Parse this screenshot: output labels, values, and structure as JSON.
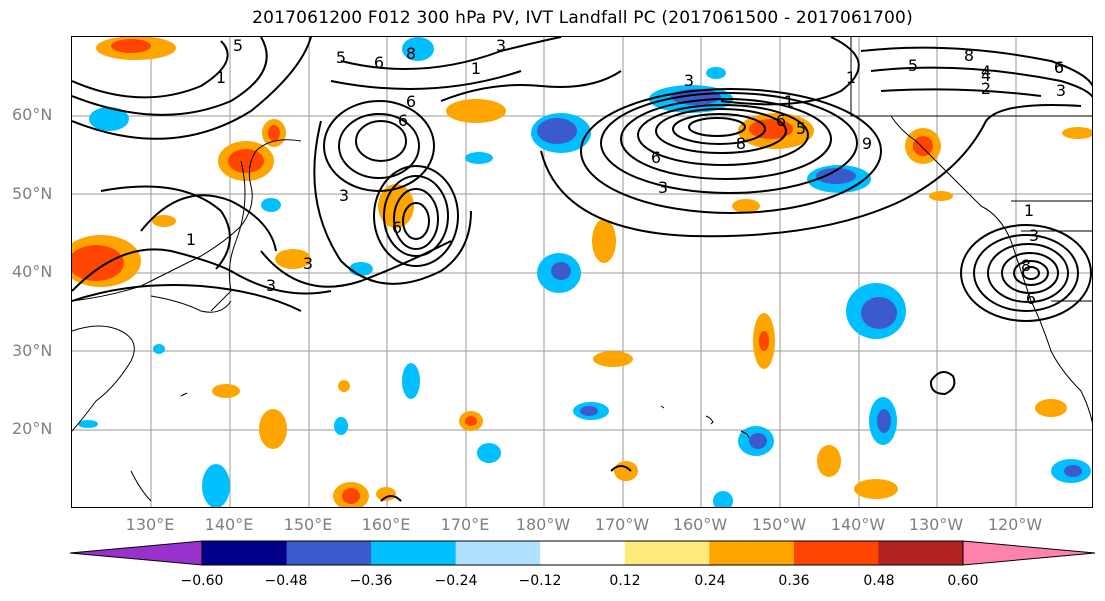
{
  "title": "2017061200 F012 300 hPa PV, IVT Landfall PC (2017061500 - 2017061700)",
  "map": {
    "lat_labels": [
      "60°N",
      "50°N",
      "40°N",
      "30°N",
      "20°N"
    ],
    "lon_labels": [
      "130°E",
      "140°E",
      "150°E",
      "160°E",
      "170°E",
      "180°W",
      "170°W",
      "160°W",
      "150°W",
      "140°W",
      "130°W",
      "120°W"
    ],
    "contour_labels": [
      "5",
      "5",
      "6",
      "8",
      "3",
      "1",
      "3",
      "8",
      "1",
      "6",
      "6",
      "9",
      "3",
      "1",
      "5",
      "4",
      "3",
      "6",
      "6",
      "6",
      "5",
      "8",
      "4",
      "1",
      "2",
      "6",
      "3",
      "1",
      "3",
      "8",
      "6",
      "3",
      "6",
      "3",
      "1"
    ]
  },
  "colorbar": {
    "ticks": [
      "−0.60",
      "−0.48",
      "−0.36",
      "−0.24",
      "−0.12",
      "0.12",
      "0.24",
      "0.36",
      "0.48",
      "0.60"
    ],
    "colors": [
      "#9932cc",
      "#00008b",
      "#3b5bcc",
      "#00bfff",
      "#b0e2ff",
      "#ffffff",
      "#ffe87c",
      "#ffa500",
      "#ff4500",
      "#b22222",
      "#ff82ab"
    ]
  }
}
